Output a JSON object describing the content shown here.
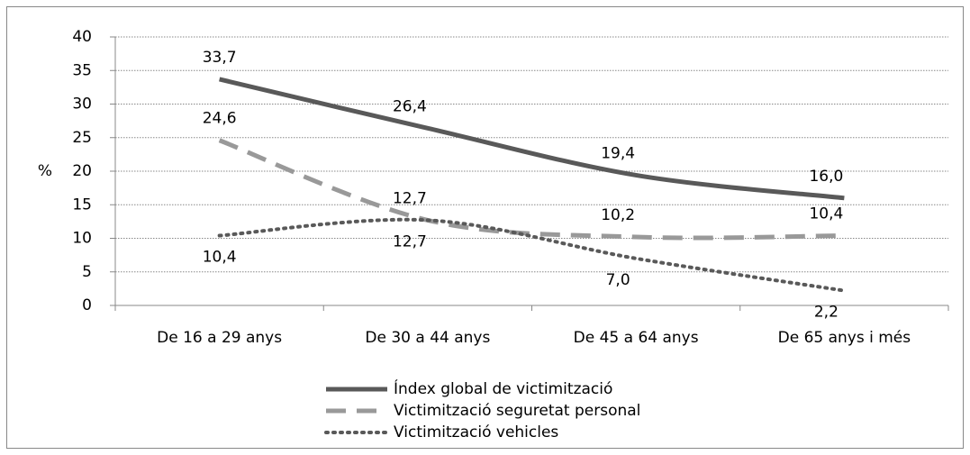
{
  "chart_data": {
    "type": "line",
    "y_label": "%",
    "categories": [
      "De 16 a 29 anys",
      "De 30 a 44 anys",
      "De 45 a 64 anys",
      "De 65 anys i més"
    ],
    "series": [
      {
        "name": "Índex global de victimització",
        "color": "#595959",
        "style": "solid",
        "values": [
          33.7,
          26.4,
          19.4,
          16.0
        ],
        "value_labels": [
          "33,7",
          "26,4",
          "19,4",
          "16,0"
        ]
      },
      {
        "name": "Victimització seguretat personal",
        "color": "#999999",
        "style": "dashed",
        "values": [
          24.6,
          12.7,
          10.2,
          10.4
        ],
        "value_labels": [
          "24,6",
          "12,7",
          "10,2",
          "10,4"
        ]
      },
      {
        "name": "Victimització vehicles",
        "color": "#595959",
        "style": "dotted",
        "values": [
          10.4,
          12.7,
          7.0,
          2.2
        ],
        "value_labels": [
          "10,4",
          "12,7",
          "7,0",
          "2,2"
        ]
      }
    ],
    "ylim": [
      0,
      40
    ],
    "yticks": [
      0,
      5,
      10,
      15,
      20,
      25,
      30,
      35,
      40
    ],
    "grid": true,
    "legend": "bottom"
  }
}
